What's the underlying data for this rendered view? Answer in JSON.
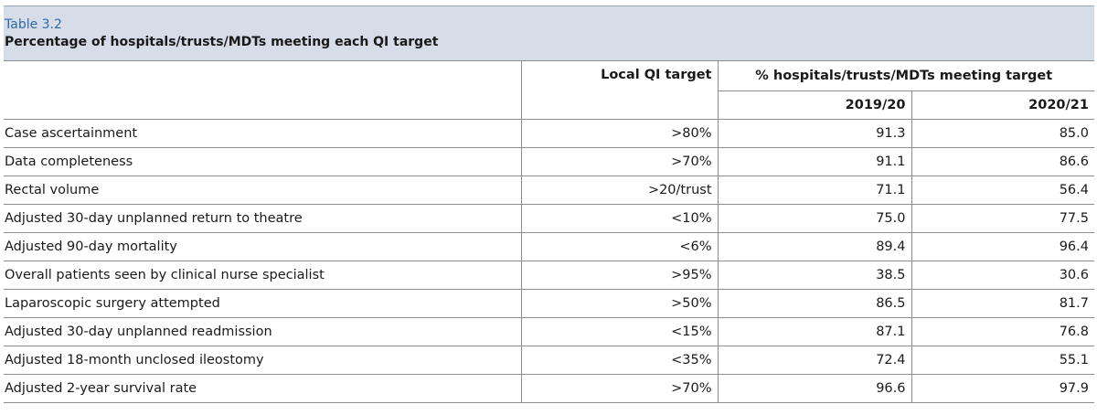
{
  "header": {
    "title": "Table 3.2",
    "subtitle": "Percentage of hospitals/trusts/MDTs meeting each QI target"
  },
  "table": {
    "target_header": "Local QI target",
    "group_header": "% hospitals/trusts/MDTs meeting target",
    "years": [
      "2019/20",
      "2020/21"
    ],
    "rows": [
      [
        "Case ascertainment",
        ">80%",
        "91.3",
        "85.0"
      ],
      [
        "Data completeness",
        ">70%",
        "91.1",
        "86.6"
      ],
      [
        "Rectal volume",
        ">20/trust",
        "71.1",
        "56.4"
      ],
      [
        "Adjusted 30-day unplanned return to theatre",
        "<10%",
        "75.0",
        "77.5"
      ],
      [
        "Adjusted 90-day mortality",
        "<6%",
        "89.4",
        "96.4"
      ],
      [
        "Overall patients seen by clinical nurse specialist",
        ">95%",
        "38.5",
        "30.6"
      ],
      [
        "Laparoscopic surgery attempted",
        ">50%",
        "86.5",
        "81.7"
      ],
      [
        "Adjusted 30-day unplanned readmission",
        "<15%",
        "87.1",
        "76.8"
      ],
      [
        "Adjusted 18-month unclosed ileostomy",
        "<35%",
        "72.4",
        "55.1"
      ],
      [
        "Adjusted 2-year survival rate",
        ">70%",
        "96.6",
        "97.9"
      ]
    ]
  }
}
